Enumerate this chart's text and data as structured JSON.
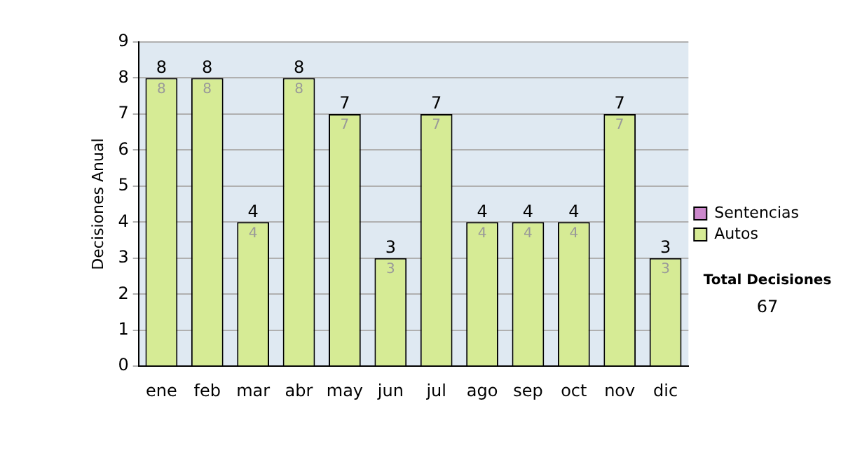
{
  "chart_data": {
    "type": "bar",
    "stacked": true,
    "ylabel": "Decisiones Anual",
    "categories": [
      "ene",
      "feb",
      "mar",
      "abr",
      "may",
      "jun",
      "jul",
      "ago",
      "sep",
      "oct",
      "nov",
      "dic"
    ],
    "series": [
      {
        "name": "Sentencias",
        "color": "#cc88cc",
        "values": [
          0,
          0,
          0,
          0,
          0,
          0,
          0,
          0,
          0,
          0,
          0,
          0
        ]
      },
      {
        "name": "Autos",
        "color": "#d6eb95",
        "values": [
          8,
          8,
          4,
          8,
          7,
          3,
          7,
          4,
          4,
          4,
          7,
          3
        ],
        "value_labels": [
          "8",
          "8",
          "4",
          "8",
          "7",
          "3",
          "7",
          "4",
          "4",
          "4",
          "7",
          "3"
        ]
      }
    ],
    "totals": [
      "8",
      "8",
      "4",
      "8",
      "7",
      "3",
      "7",
      "4",
      "4",
      "4",
      "7",
      "3"
    ],
    "ylim": [
      0,
      9
    ],
    "yticks": [
      0,
      1,
      2,
      3,
      4,
      5,
      6,
      7,
      8,
      9
    ],
    "grid": "y",
    "legend": "right",
    "annotations": [
      "Total Decisiones",
      "67"
    ]
  }
}
